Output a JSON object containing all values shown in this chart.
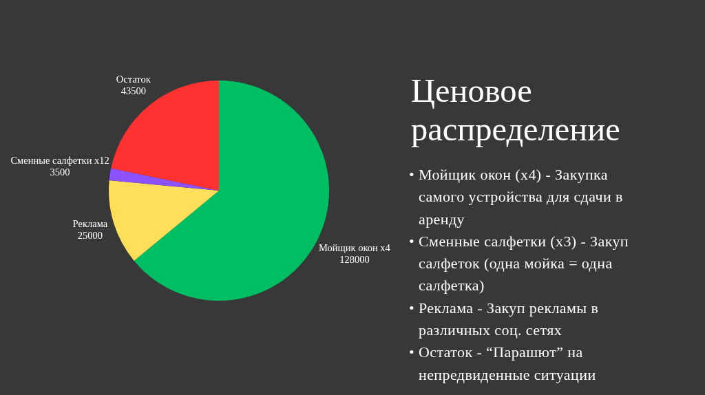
{
  "chart_data": {
    "type": "pie",
    "title": "Ценовое распределение",
    "categories": [
      "Мойщик окон x4",
      "Реклама",
      "Сменные салфетки x12",
      "Остаток"
    ],
    "values": [
      128000,
      25000,
      3500,
      43500
    ],
    "colors": [
      "#00bf63",
      "#ffde59",
      "#8c52ff",
      "#ff3131"
    ],
    "data_labels": true,
    "annotations": [
      "• Мойщик окон (x4) - Закупка самого устройства для сдачи в аренду",
      "• Сменные салфетки (x3) - Закуп салфеток (одна мойка = одна салфетка)",
      "• Реклама - Закуп рекламы в различных соц. сетях",
      "• Остаток - “Парашют” на непредвиденные ситуации"
    ]
  }
}
